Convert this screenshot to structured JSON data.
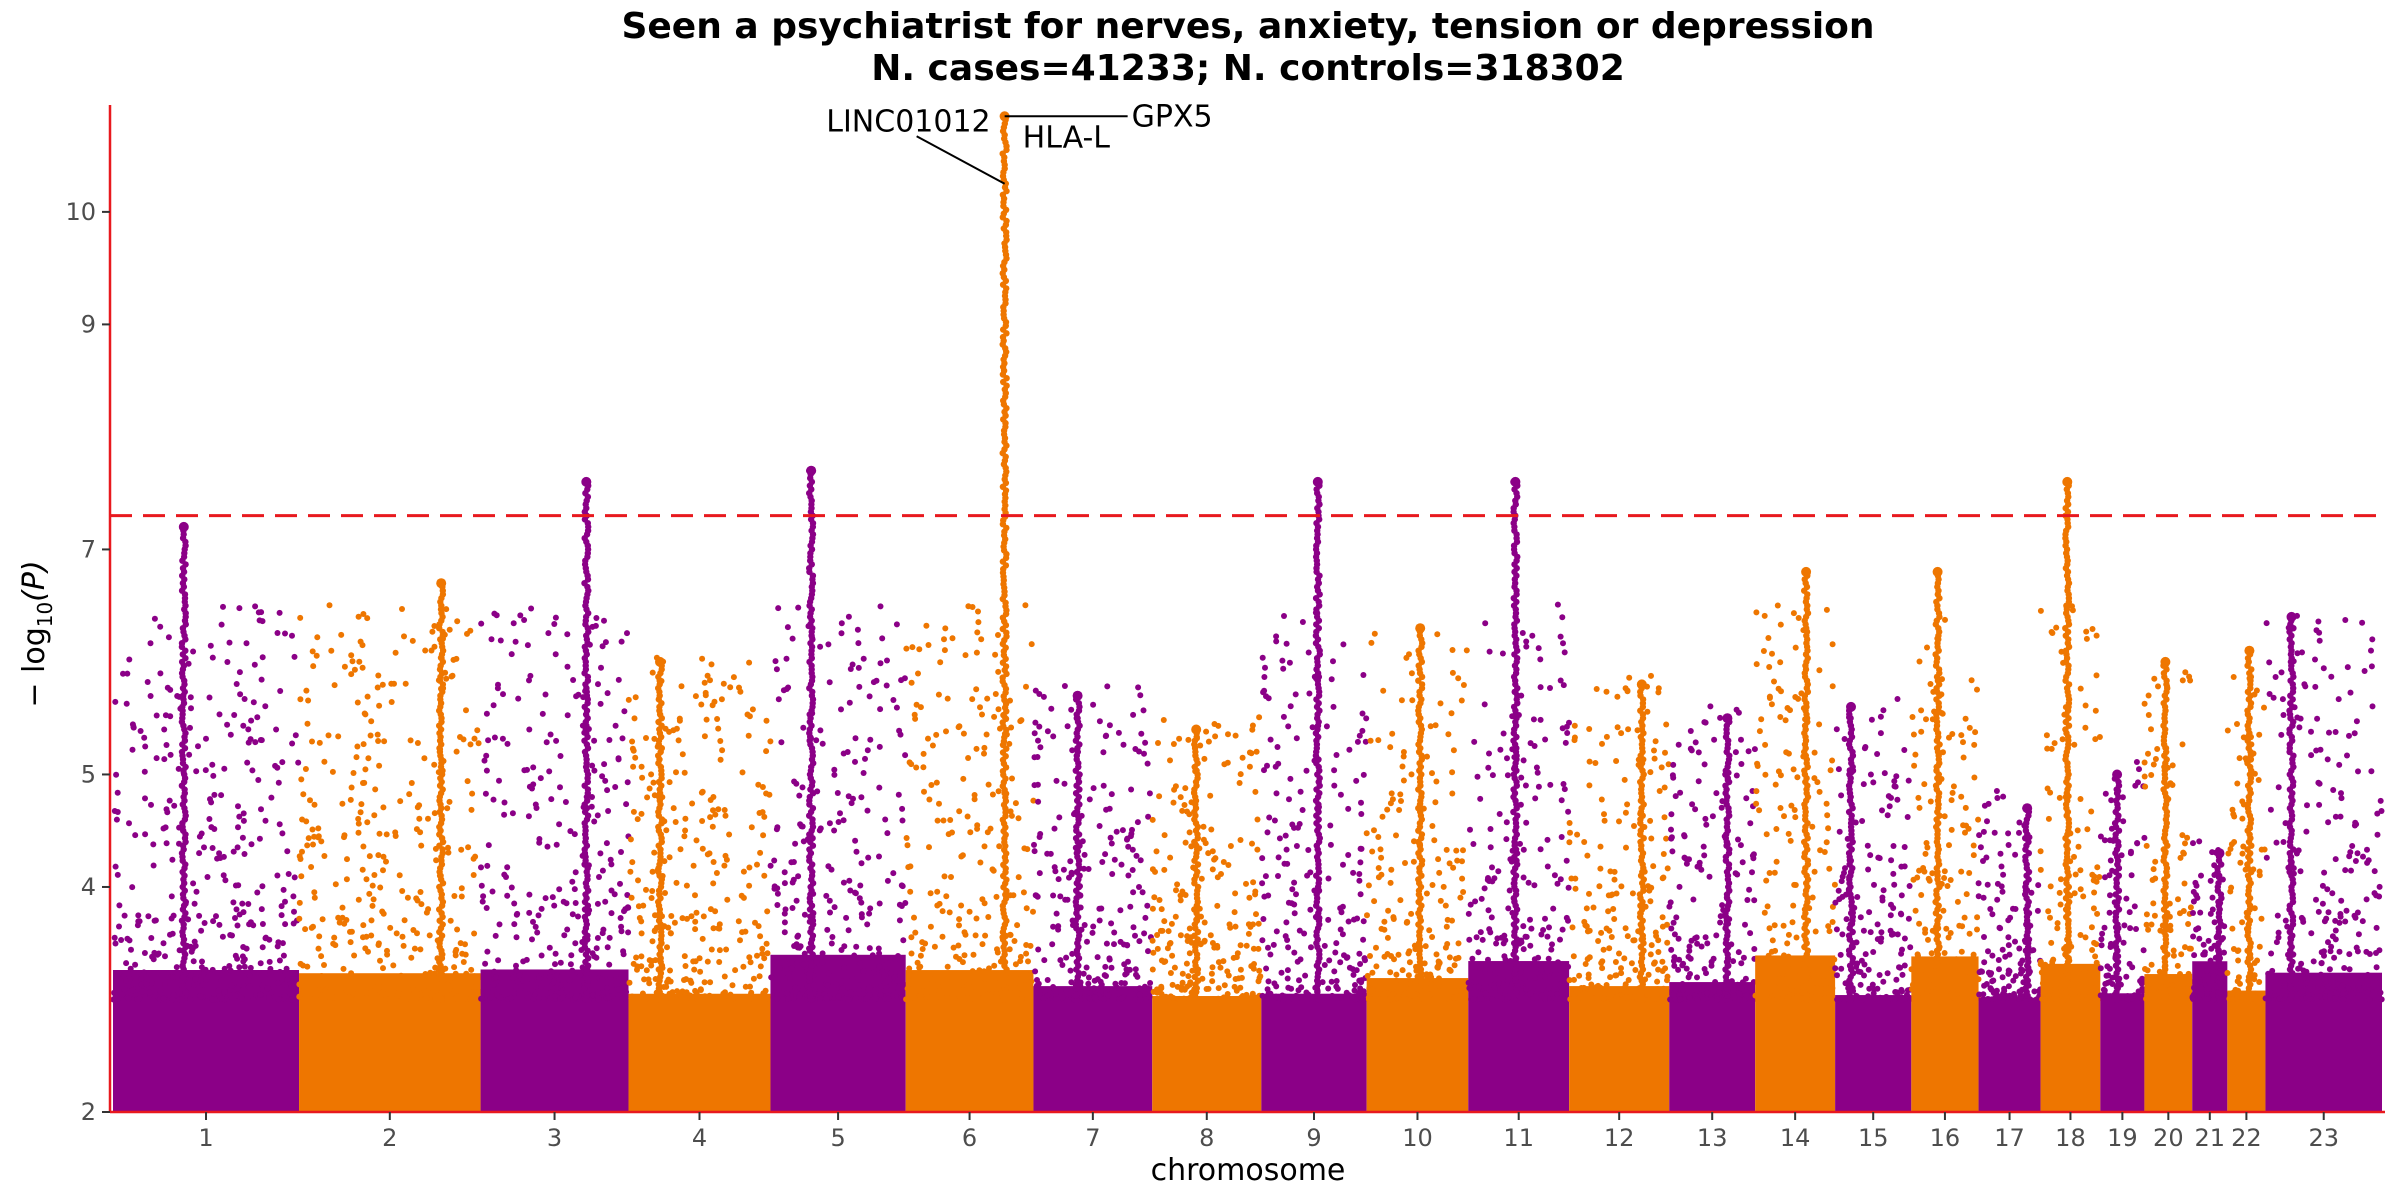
{
  "chart_data": {
    "type": "scatter",
    "subtype": "manhattan",
    "title": "Seen a psychiatrist for nerves, anxiety, tension or depression",
    "subtitle": "N. cases=41233; N. controls=318302",
    "xlabel": "chromosome",
    "ylabel_prefix": "− log",
    "ylabel_subscript": "10",
    "ylabel_suffix": "(P)",
    "ylim": [
      2,
      10.95
    ],
    "y_ticks": [
      2,
      4,
      5,
      7,
      9,
      10
    ],
    "significance_threshold": 7.3,
    "colors": {
      "odd": "#8B0087",
      "even": "#EE7600",
      "threshold": "#E8191E",
      "axis": "#E8191E"
    },
    "chromosomes": [
      {
        "label": "1",
        "size": 249,
        "peak": 7.2,
        "color": "odd"
      },
      {
        "label": "2",
        "size": 243,
        "peak": 6.7,
        "color": "even"
      },
      {
        "label": "3",
        "size": 198,
        "peak": 7.6,
        "color": "odd"
      },
      {
        "label": "4",
        "size": 190,
        "peak": 6.0,
        "color": "even"
      },
      {
        "label": "5",
        "size": 181,
        "peak": 7.7,
        "color": "odd"
      },
      {
        "label": "6",
        "size": 171,
        "peak": 10.85,
        "color": "even"
      },
      {
        "label": "7",
        "size": 159,
        "peak": 5.7,
        "color": "odd"
      },
      {
        "label": "8",
        "size": 146,
        "peak": 5.4,
        "color": "even"
      },
      {
        "label": "9",
        "size": 141,
        "peak": 7.6,
        "color": "odd"
      },
      {
        "label": "10",
        "size": 136,
        "peak": 6.3,
        "color": "even"
      },
      {
        "label": "11",
        "size": 135,
        "peak": 7.6,
        "color": "odd"
      },
      {
        "label": "12",
        "size": 134,
        "peak": 5.8,
        "color": "even"
      },
      {
        "label": "13",
        "size": 115,
        "peak": 5.5,
        "color": "odd"
      },
      {
        "label": "14",
        "size": 107,
        "peak": 6.8,
        "color": "even"
      },
      {
        "label": "15",
        "size": 102,
        "peak": 5.6,
        "color": "odd"
      },
      {
        "label": "16",
        "size": 90,
        "peak": 6.8,
        "color": "even"
      },
      {
        "label": "17",
        "size": 83,
        "peak": 4.7,
        "color": "odd"
      },
      {
        "label": "18",
        "size": 80,
        "peak": 7.6,
        "color": "even"
      },
      {
        "label": "19",
        "size": 59,
        "peak": 5.0,
        "color": "odd"
      },
      {
        "label": "20",
        "size": 64,
        "peak": 6.0,
        "color": "even"
      },
      {
        "label": "21",
        "size": 47,
        "peak": 4.3,
        "color": "odd"
      },
      {
        "label": "22",
        "size": 51,
        "peak": 6.1,
        "color": "even"
      },
      {
        "label": "23",
        "size": 156,
        "peak": 6.4,
        "color": "odd"
      }
    ],
    "annotations": [
      {
        "gene": "LINC01012",
        "chromosome": "6",
        "y": 10.25
      },
      {
        "gene": "HLA-L",
        "chromosome": "6",
        "y": 10.85
      },
      {
        "gene": "GPX5",
        "chromosome": "6",
        "y": 10.85
      }
    ],
    "grid": false,
    "legend": "none"
  }
}
